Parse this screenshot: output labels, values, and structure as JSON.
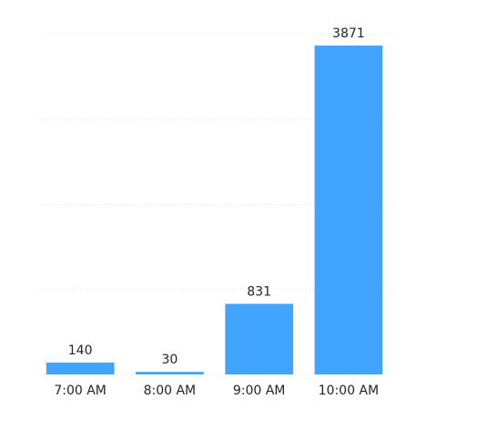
{
  "chart_data": {
    "type": "bar",
    "categories": [
      "7:00 AM",
      "8:00 AM",
      "9:00 AM",
      "10:00 AM"
    ],
    "values": [
      140,
      30,
      831,
      3871
    ],
    "color": "#41a4ff",
    "ylim": [
      0,
      4000
    ],
    "yticks": [
      0,
      1000,
      2000,
      3000,
      4000
    ],
    "grid": true
  }
}
